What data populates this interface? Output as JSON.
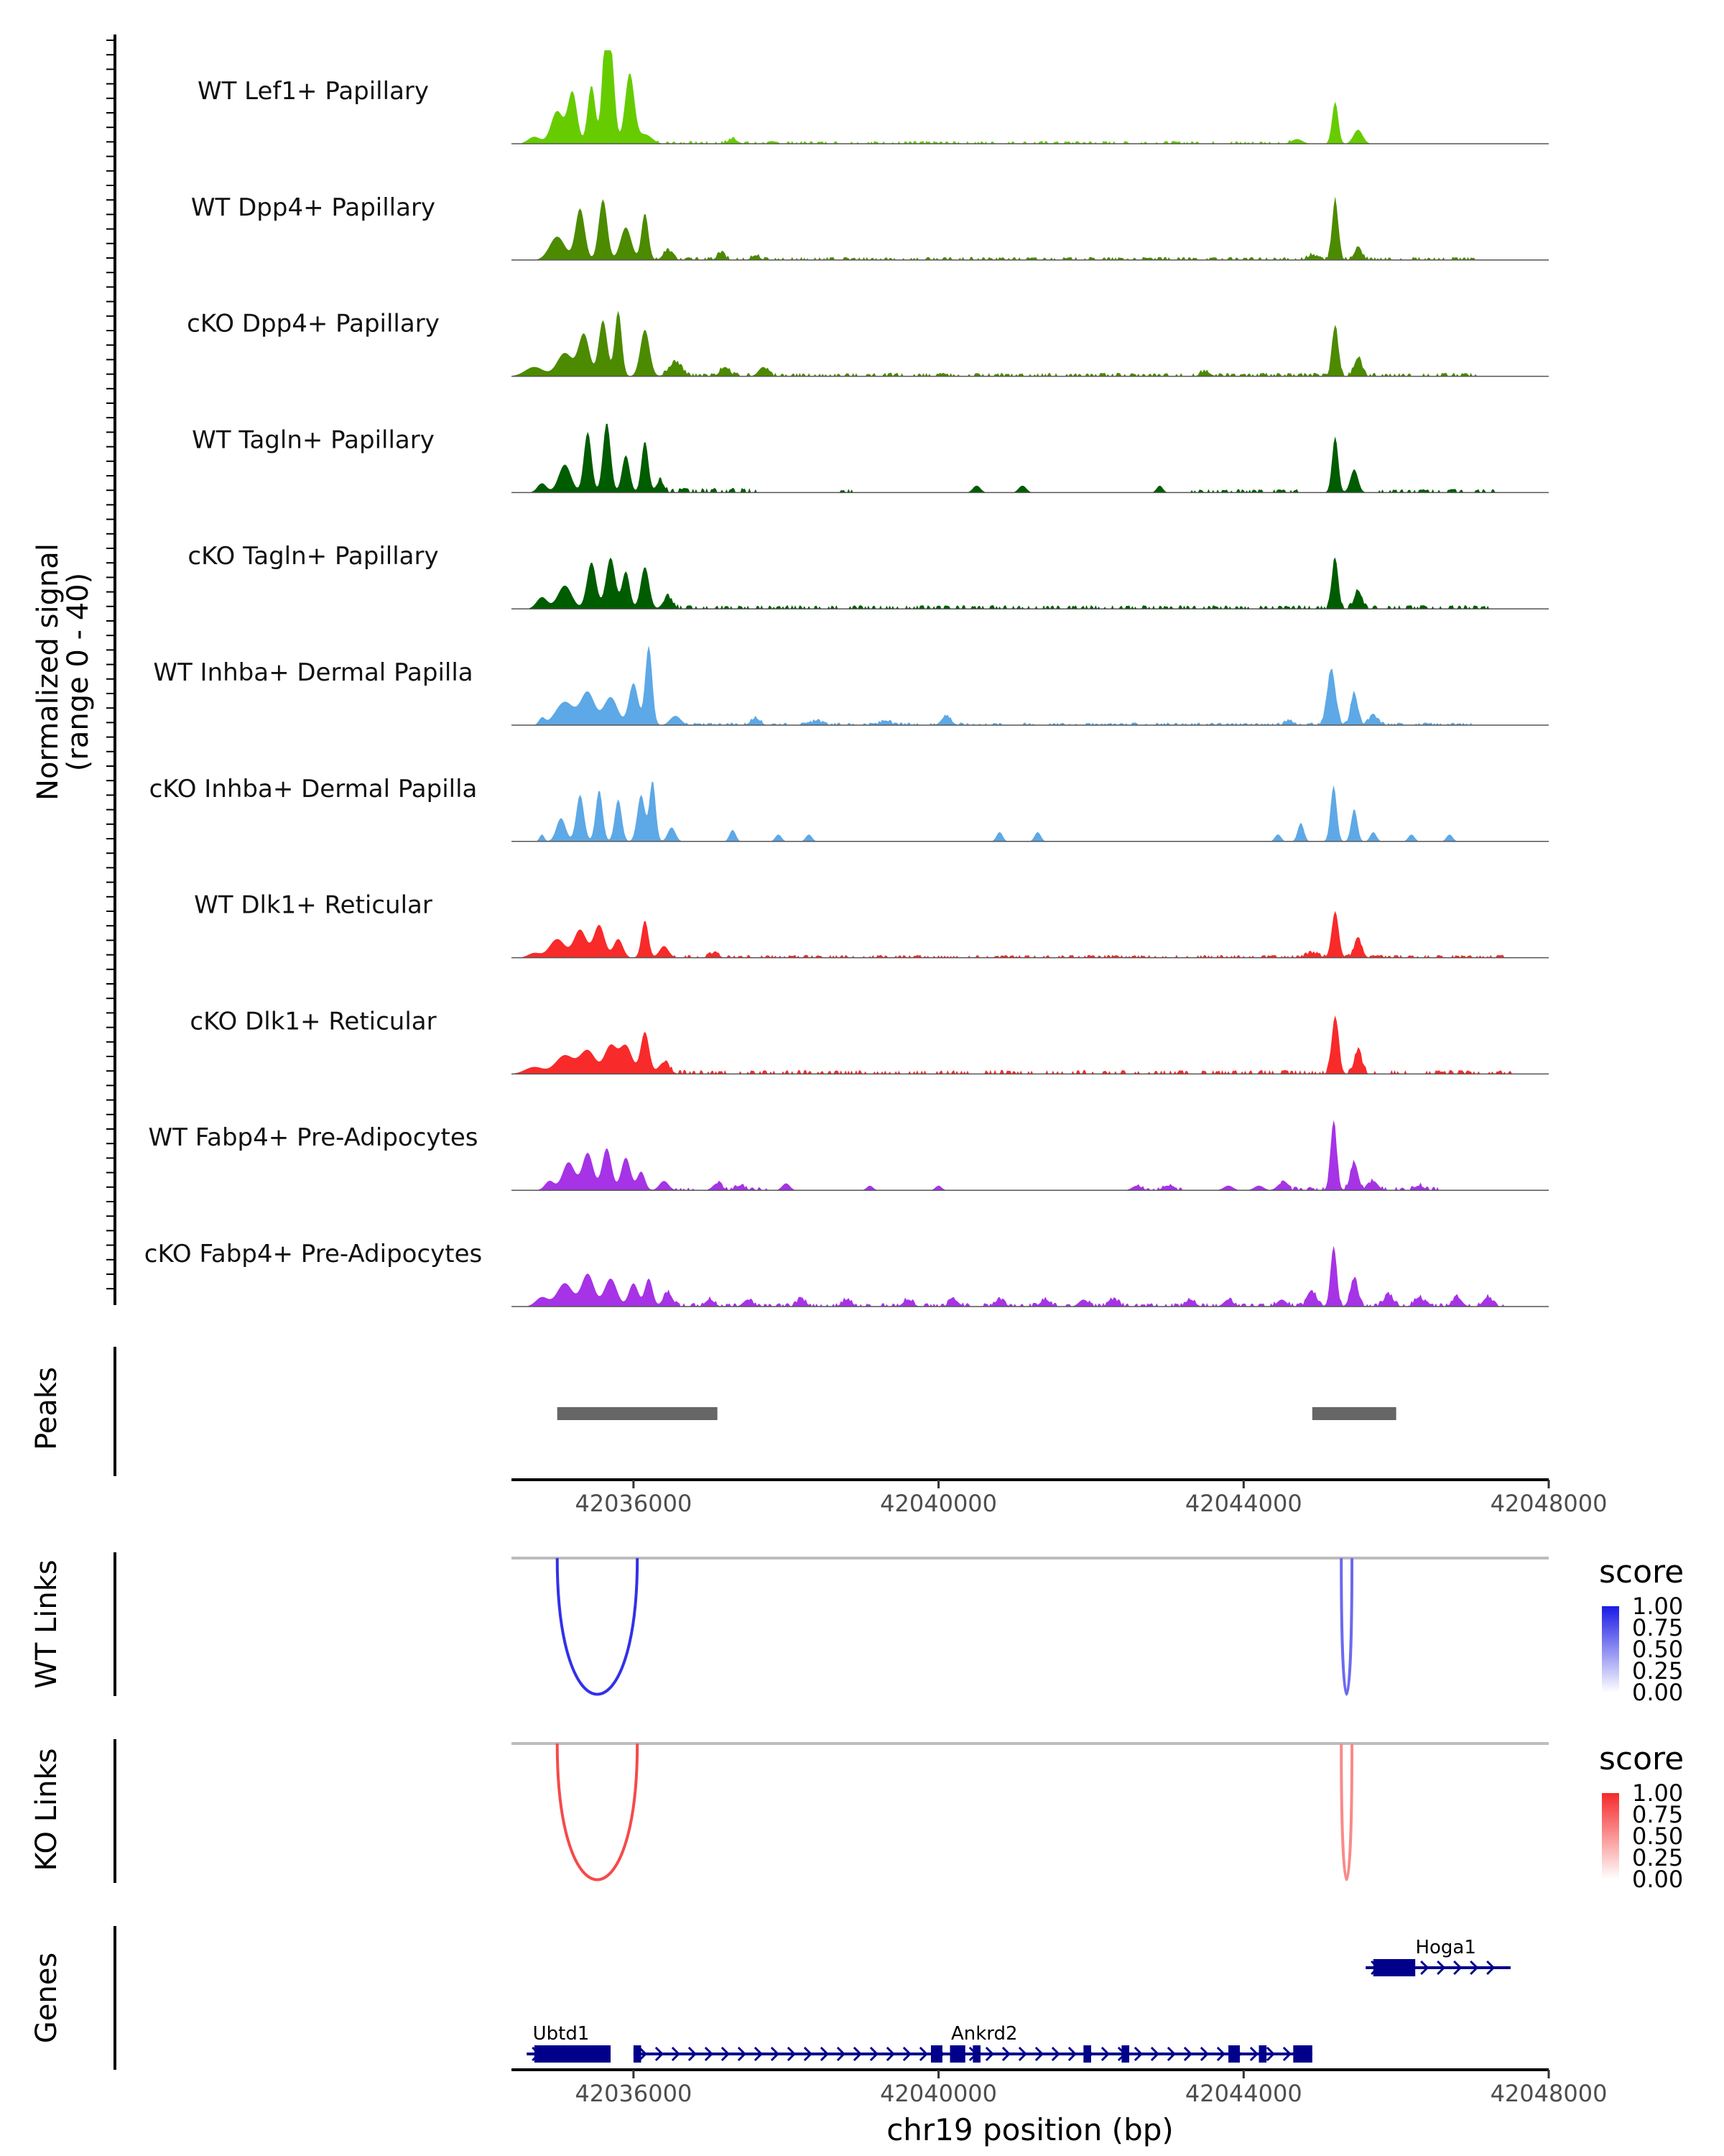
{
  "chart_data": {
    "type": "genome-coverage-track",
    "xlabel": "chr19 position (bp)",
    "xlim": [
      34400,
      48000
    ],
    "x_ticks": [
      {
        "value": 36000,
        "label": "42036000"
      },
      {
        "value": 40000,
        "label": "42040000"
      },
      {
        "value": 44000,
        "label": "42044000"
      },
      {
        "value": 48000,
        "label": "42048000"
      }
    ],
    "coverage": {
      "ylabel_line1": "Normalized signal",
      "ylabel_line2": "(range 0 - 40)",
      "ylim": [
        0,
        40
      ],
      "tracks": [
        {
          "name": "WT Lef1+ Papillary",
          "color": "#66CC00",
          "peaks": [
            [
              34700,
              3,
              80
            ],
            [
              35000,
              14,
              80
            ],
            [
              35200,
              22,
              60
            ],
            [
              35450,
              25,
              50
            ],
            [
              35620,
              34,
              40
            ],
            [
              35700,
              40,
              50
            ],
            [
              35950,
              30,
              60
            ],
            [
              36150,
              4,
              90
            ],
            [
              37300,
              2,
              60
            ],
            [
              44700,
              2,
              70
            ],
            [
              45200,
              18,
              40
            ],
            [
              45500,
              6,
              60
            ]
          ],
          "noise": [
            [
              36300,
              44600,
              1.2
            ]
          ]
        },
        {
          "name": "WT Dpp4+ Papillary",
          "color": "#4C8A00",
          "peaks": [
            [
              35000,
              10,
              100
            ],
            [
              35300,
              22,
              60
            ],
            [
              35600,
              26,
              55
            ],
            [
              35900,
              14,
              70
            ],
            [
              36150,
              20,
              45
            ],
            [
              36450,
              4,
              60
            ],
            [
              37150,
              3,
              50
            ],
            [
              37600,
              2,
              50
            ],
            [
              44900,
              2,
              60
            ],
            [
              45200,
              26,
              40
            ],
            [
              45500,
              5,
              50
            ]
          ],
          "noise": [
            [
              36300,
              47100,
              1.3
            ]
          ]
        },
        {
          "name": "cKO Dpp4+ Papillary",
          "color": "#4C8A00",
          "peaks": [
            [
              34700,
              4,
              120
            ],
            [
              35100,
              10,
              100
            ],
            [
              35350,
              18,
              70
            ],
            [
              35600,
              24,
              55
            ],
            [
              35800,
              28,
              45
            ],
            [
              36150,
              20,
              60
            ],
            [
              36550,
              6,
              80
            ],
            [
              37200,
              4,
              60
            ],
            [
              37700,
              4,
              60
            ],
            [
              43500,
              2,
              60
            ],
            [
              45200,
              22,
              40
            ],
            [
              45500,
              8,
              50
            ]
          ],
          "noise": [
            [
              36400,
              47200,
              1.5
            ]
          ]
        },
        {
          "name": "WT Tagln+ Papillary",
          "color": "#005C00",
          "peaks": [
            [
              34800,
              4,
              60
            ],
            [
              35100,
              12,
              80
            ],
            [
              35400,
              26,
              50
            ],
            [
              35650,
              30,
              50
            ],
            [
              35900,
              16,
              50
            ],
            [
              36150,
              22,
              45
            ],
            [
              36350,
              5,
              50
            ],
            [
              40500,
              3,
              50
            ],
            [
              41100,
              3,
              50
            ],
            [
              42900,
              3,
              40
            ],
            [
              45200,
              24,
              40
            ],
            [
              45450,
              10,
              50
            ]
          ],
          "noise": [
            [
              36300,
              37600,
              2
            ],
            [
              38700,
              38900,
              1.5
            ],
            [
              43300,
              44700,
              1.5
            ],
            [
              45700,
              47300,
              1.6
            ]
          ]
        },
        {
          "name": "cKO Tagln+ Papillary",
          "color": "#005C00",
          "peaks": [
            [
              34800,
              5,
              70
            ],
            [
              35100,
              10,
              90
            ],
            [
              35450,
              20,
              60
            ],
            [
              35700,
              22,
              60
            ],
            [
              35900,
              16,
              50
            ],
            [
              36150,
              18,
              55
            ],
            [
              36450,
              5,
              60
            ],
            [
              45200,
              22,
              40
            ],
            [
              45500,
              8,
              50
            ]
          ],
          "noise": [
            [
              36400,
              47300,
              1.6
            ]
          ]
        },
        {
          "name": "WT Inhba+ Dermal Papilla",
          "color": "#5DA8E6",
          "peaks": [
            [
              34800,
              3,
              40
            ],
            [
              35100,
              10,
              120
            ],
            [
              35400,
              14,
              90
            ],
            [
              35700,
              12,
              90
            ],
            [
              36000,
              18,
              60
            ],
            [
              36200,
              34,
              45
            ],
            [
              36550,
              4,
              70
            ],
            [
              37600,
              3,
              60
            ],
            [
              38400,
              2,
              60
            ],
            [
              39300,
              2,
              60
            ],
            [
              40100,
              4,
              60
            ],
            [
              44600,
              2,
              50
            ],
            [
              45150,
              24,
              55
            ],
            [
              45450,
              14,
              45
            ],
            [
              45700,
              4,
              60
            ]
          ],
          "noise": [
            [
              36700,
              47000,
              1.1
            ]
          ]
        },
        {
          "name": "cKO Inhba+ Dermal Papilla",
          "color": "#5DA8E6",
          "peaks": [
            [
              34800,
              3,
              30
            ],
            [
              35050,
              10,
              60
            ],
            [
              35300,
              20,
              50
            ],
            [
              35550,
              22,
              45
            ],
            [
              35800,
              18,
              45
            ],
            [
              36100,
              20,
              50
            ],
            [
              36250,
              26,
              40
            ],
            [
              36500,
              6,
              50
            ],
            [
              37300,
              5,
              40
            ],
            [
              37900,
              3,
              40
            ],
            [
              38300,
              3,
              40
            ],
            [
              40800,
              4,
              40
            ],
            [
              41300,
              4,
              40
            ],
            [
              44450,
              3,
              40
            ],
            [
              44750,
              8,
              40
            ],
            [
              45180,
              24,
              40
            ],
            [
              45450,
              14,
              40
            ],
            [
              45700,
              4,
              40
            ],
            [
              46200,
              3,
              40
            ],
            [
              46700,
              3,
              40
            ]
          ],
          "noise": []
        },
        {
          "name": "WT Dlk1+ Reticular",
          "color": "#F82A2A",
          "peaks": [
            [
              34700,
              2,
              80
            ],
            [
              35000,
              8,
              100
            ],
            [
              35300,
              12,
              80
            ],
            [
              35550,
              14,
              70
            ],
            [
              35800,
              8,
              60
            ],
            [
              36150,
              16,
              45
            ],
            [
              36400,
              5,
              60
            ],
            [
              37050,
              2,
              60
            ],
            [
              44900,
              2,
              80
            ],
            [
              45200,
              20,
              45
            ],
            [
              45500,
              8,
              50
            ]
          ],
          "noise": [
            [
              36500,
              47400,
              1.2
            ]
          ]
        },
        {
          "name": "cKO Dlk1+ Reticular",
          "color": "#F82A2A",
          "peaks": [
            [
              34700,
              3,
              120
            ],
            [
              35100,
              8,
              120
            ],
            [
              35400,
              10,
              100
            ],
            [
              35700,
              12,
              80
            ],
            [
              35900,
              12,
              80
            ],
            [
              36150,
              18,
              55
            ],
            [
              36400,
              5,
              70
            ],
            [
              45200,
              25,
              45
            ],
            [
              45500,
              10,
              50
            ]
          ],
          "noise": [
            [
              36400,
              47500,
              1.7
            ]
          ]
        },
        {
          "name": "WT Fabp4+ Pre-Adipocytes",
          "color": "#A633E6",
          "peaks": [
            [
              34900,
              4,
              60
            ],
            [
              35150,
              12,
              80
            ],
            [
              35400,
              16,
              70
            ],
            [
              35650,
              18,
              60
            ],
            [
              35900,
              14,
              60
            ],
            [
              36100,
              8,
              50
            ],
            [
              36400,
              4,
              60
            ],
            [
              37100,
              3,
              60
            ],
            [
              37400,
              2,
              60
            ],
            [
              38000,
              3,
              50
            ],
            [
              39100,
              2,
              40
            ],
            [
              40000,
              2,
              40
            ],
            [
              42600,
              2,
              60
            ],
            [
              43000,
              2,
              60
            ],
            [
              43800,
              2,
              60
            ],
            [
              44200,
              2,
              60
            ],
            [
              44500,
              3,
              60
            ],
            [
              45180,
              30,
              40
            ],
            [
              45450,
              12,
              50
            ],
            [
              45700,
              4,
              60
            ],
            [
              46300,
              2,
              60
            ]
          ],
          "noise": [
            [
              36500,
              36800,
              1.2
            ],
            [
              37100,
              37800,
              1.3
            ],
            [
              42600,
              43200,
              1.2
            ],
            [
              44500,
              46600,
              1.5
            ]
          ]
        },
        {
          "name": "cKO Fabp4+ Pre-Adipocytes",
          "color": "#A633E6",
          "peaks": [
            [
              34800,
              4,
              80
            ],
            [
              35100,
              10,
              100
            ],
            [
              35400,
              14,
              80
            ],
            [
              35700,
              12,
              80
            ],
            [
              36000,
              10,
              60
            ],
            [
              36200,
              12,
              50
            ],
            [
              36450,
              6,
              60
            ],
            [
              37000,
              3,
              60
            ],
            [
              37500,
              3,
              60
            ],
            [
              38200,
              3,
              60
            ],
            [
              38800,
              3,
              60
            ],
            [
              39600,
              3,
              60
            ],
            [
              40200,
              3,
              60
            ],
            [
              40800,
              3,
              60
            ],
            [
              41400,
              3,
              60
            ],
            [
              41900,
              3,
              60
            ],
            [
              42300,
              3,
              60
            ],
            [
              43300,
              3,
              60
            ],
            [
              43800,
              3,
              60
            ],
            [
              44500,
              3,
              60
            ],
            [
              44900,
              6,
              60
            ],
            [
              45180,
              26,
              40
            ],
            [
              45450,
              12,
              50
            ],
            [
              45900,
              5,
              60
            ],
            [
              46300,
              4,
              60
            ],
            [
              46800,
              4,
              60
            ],
            [
              47200,
              4,
              60
            ]
          ],
          "noise": [
            [
              36400,
              47400,
              1.5
            ]
          ]
        }
      ]
    },
    "peaks_track": {
      "label": "Peaks",
      "color": "#666666",
      "regions": [
        [
          35000,
          37100
        ],
        [
          44900,
          46000
        ]
      ]
    },
    "links_tracks": [
      {
        "label": "WT Links",
        "legend_title": "score",
        "legend_ticks": [
          "1.00",
          "0.75",
          "0.50",
          "0.25",
          "0.00"
        ],
        "color_low": "#FFFFFF",
        "color_high": "#1A1AE6",
        "links": [
          {
            "start": 35000,
            "end": 36050,
            "score": 0.9
          },
          {
            "start": 45280,
            "end": 45420,
            "score": 0.65
          }
        ]
      },
      {
        "label": "KO Links",
        "legend_title": "score",
        "legend_ticks": [
          "1.00",
          "0.75",
          "0.50",
          "0.25",
          "0.00"
        ],
        "color_low": "#FFFFFF",
        "color_high": "#F42A2A",
        "links": [
          {
            "start": 35000,
            "end": 36050,
            "score": 0.85
          },
          {
            "start": 45280,
            "end": 45420,
            "score": 0.55
          }
        ]
      }
    ],
    "genes_track": {
      "label": "Genes",
      "color": "#00008B",
      "genes": [
        {
          "name": "Ubtd1",
          "start": 34600,
          "end": 35700,
          "row": 2,
          "label_x": 35050,
          "blocks": [
            [
              34700,
              35700
            ]
          ]
        },
        {
          "name": "Ankrd2",
          "start": 36000,
          "end": 44900,
          "row": 2,
          "label_x": 40600,
          "blocks": [
            [
              36000,
              36100
            ],
            [
              39900,
              40050
            ],
            [
              40150,
              40350
            ],
            [
              40450,
              40550
            ],
            [
              41900,
              42000
            ],
            [
              42400,
              42500
            ],
            [
              43800,
              43950
            ],
            [
              44200,
              44300
            ],
            [
              44650,
              44900
            ]
          ]
        },
        {
          "name": "Hoga1",
          "start": 45600,
          "end": 47500,
          "row": 1,
          "label_x": 46650,
          "blocks": [
            [
              45700,
              46250
            ]
          ]
        }
      ]
    }
  }
}
